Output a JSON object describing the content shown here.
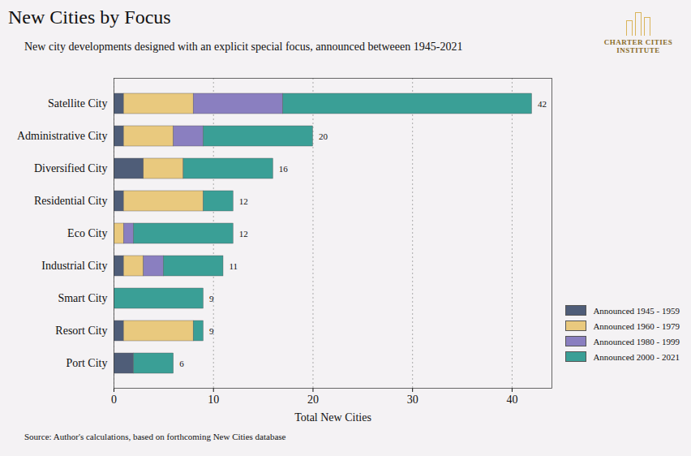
{
  "chart_data": {
    "type": "bar",
    "orientation": "horizontal",
    "stacked": true,
    "title": "New Cities by Focus",
    "subtitle": "New city developments designed with an explicit special focus, announced betweeen 1945-2021",
    "caption": "Source: Author's calculations, based on forthcoming New Cities database",
    "annotations": [
      "CHARTER CITIES INSTITUTE"
    ],
    "x_label": "Total New Cities",
    "categories": [
      "Satellite City",
      "Administrative City",
      "Diversified City",
      "Residential City",
      "Eco City",
      "Industrial City",
      "Smart City",
      "Resort City",
      "Port City"
    ],
    "series": [
      {
        "name": "Announced 1945 - 1959",
        "color": "#4f5d78",
        "values": [
          1,
          1,
          3,
          1,
          0,
          1,
          0,
          1,
          2
        ]
      },
      {
        "name": "Announced 1960 - 1979",
        "color": "#e9c97e",
        "values": [
          7,
          5,
          4,
          8,
          1,
          2,
          0,
          7,
          0
        ]
      },
      {
        "name": "Announced 1980 - 1999",
        "color": "#8a7fc0",
        "values": [
          9,
          3,
          0,
          0,
          1,
          2,
          0,
          0,
          0
        ]
      },
      {
        "name": "Announced 2000 - 2021",
        "color": "#3a9f96",
        "values": [
          25,
          11,
          9,
          3,
          10,
          6,
          9,
          1,
          4
        ]
      }
    ],
    "totals": [
      42,
      20,
      16,
      12,
      12,
      11,
      9,
      9,
      6
    ],
    "xlim": [
      0,
      44
    ],
    "xticks": [
      0,
      10,
      20,
      30,
      40
    ],
    "grid": true,
    "legend": "bottom-right"
  }
}
